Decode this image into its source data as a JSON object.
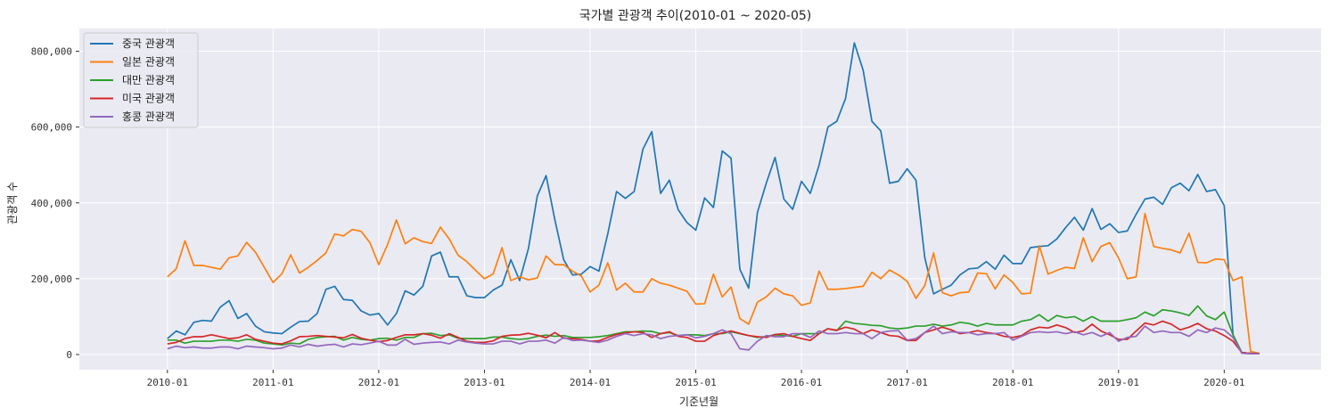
{
  "chart_data": {
    "type": "line",
    "title": "국가별 관광객 추이(2010-01 ~ 2020-05)",
    "xlabel": "기준년월",
    "ylabel": "관광객 수",
    "xlim": [
      "2009-03",
      "2020-12"
    ],
    "ylim": [
      -40000,
      860000
    ],
    "x_ticks": [
      "2010-01",
      "2011-01",
      "2012-01",
      "2013-01",
      "2014-01",
      "2015-01",
      "2016-01",
      "2017-01",
      "2018-01",
      "2019-01",
      "2020-01"
    ],
    "y_ticks": [
      0,
      200000,
      400000,
      600000,
      800000
    ],
    "y_tick_labels": [
      "0",
      "200,000",
      "400,000",
      "600,000",
      "800,000"
    ],
    "grid": true,
    "legend_position": "top-left",
    "start_month": "2010-01",
    "colors": [
      "#1f77b4",
      "#ff7f0e",
      "#2ca02c",
      "#d62728",
      "#9467bd"
    ],
    "series": [
      {
        "name": "중국 관광객",
        "values": [
          42000,
          62000,
          52000,
          85000,
          90000,
          88000,
          125000,
          142000,
          95000,
          108000,
          75000,
          60000,
          57000,
          55000,
          72000,
          87000,
          88000,
          108000,
          172000,
          180000,
          145000,
          143000,
          115000,
          104000,
          108000,
          78000,
          108000,
          168000,
          157000,
          180000,
          260000,
          270000,
          205000,
          205000,
          155000,
          150000,
          150000,
          170000,
          183000,
          250000,
          195000,
          280000,
          418000,
          472000,
          355000,
          250000,
          210000,
          212000,
          232000,
          220000,
          318000,
          430000,
          412000,
          430000,
          542000,
          588000,
          425000,
          460000,
          382000,
          348000,
          328000,
          413000,
          388000,
          537000,
          518000,
          225000,
          175000,
          375000,
          452000,
          520000,
          410000,
          383000,
          457000,
          425000,
          500000,
          600000,
          615000,
          675000,
          822000,
          750000,
          615000,
          590000,
          452000,
          457000,
          490000,
          460000,
          255000,
          160000,
          172000,
          183000,
          210000,
          226000,
          228000,
          245000,
          225000,
          262000,
          240000,
          240000,
          282000,
          285000,
          287000,
          305000,
          335000,
          362000,
          328000,
          385000,
          330000,
          345000,
          322000,
          326000,
          370000,
          410000,
          415000,
          396000,
          440000,
          452000,
          432000,
          475000,
          430000,
          435000,
          393000,
          52000,
          5000,
          3000,
          3000
        ]
      },
      {
        "name": "일본 관광객",
        "values": [
          205000,
          226000,
          300000,
          235000,
          235000,
          230000,
          225000,
          255000,
          260000,
          296000,
          270000,
          230000,
          190000,
          213000,
          263000,
          215000,
          230000,
          248000,
          268000,
          318000,
          313000,
          330000,
          325000,
          295000,
          237000,
          290000,
          355000,
          292000,
          308000,
          298000,
          293000,
          336000,
          305000,
          262000,
          245000,
          222000,
          200000,
          213000,
          282000,
          195000,
          205000,
          197000,
          202000,
          260000,
          237000,
          237000,
          220000,
          207000,
          165000,
          183000,
          242000,
          170000,
          188000,
          165000,
          165000,
          200000,
          188000,
          183000,
          175000,
          167000,
          133000,
          134000,
          212000,
          152000,
          178000,
          95000,
          80000,
          138000,
          152000,
          175000,
          160000,
          155000,
          130000,
          136000,
          220000,
          172000,
          172000,
          174000,
          177000,
          180000,
          217000,
          200000,
          223000,
          210000,
          193000,
          148000,
          182000,
          268000,
          163000,
          155000,
          163000,
          165000,
          215000,
          213000,
          173000,
          210000,
          190000,
          160000,
          162000,
          287000,
          212000,
          222000,
          230000,
          227000,
          308000,
          245000,
          285000,
          295000,
          255000,
          200000,
          205000,
          372000,
          285000,
          280000,
          276000,
          268000,
          320000,
          243000,
          242000,
          252000,
          250000,
          195000,
          205000,
          8000,
          3000
        ]
      },
      {
        "name": "대만 관광객",
        "values": [
          38000,
          38000,
          30000,
          35000,
          35000,
          35000,
          38000,
          38000,
          35000,
          40000,
          38000,
          30000,
          28000,
          25000,
          30000,
          28000,
          40000,
          45000,
          47000,
          48000,
          38000,
          45000,
          40000,
          38000,
          42000,
          43000,
          38000,
          45000,
          45000,
          55000,
          56000,
          50000,
          52000,
          43000,
          42000,
          42000,
          42000,
          46000,
          46000,
          42000,
          40000,
          42000,
          48000,
          51000,
          48000,
          50000,
          45000,
          45000,
          45000,
          47000,
          50000,
          55000,
          60000,
          60000,
          62000,
          61000,
          55000,
          58000,
          50000,
          52000,
          52000,
          50000,
          55000,
          55000,
          60000,
          55000,
          50000,
          45000,
          48000,
          52000,
          50000,
          48000,
          55000,
          55000,
          55000,
          68000,
          63000,
          88000,
          82000,
          80000,
          77000,
          76000,
          70000,
          68000,
          70000,
          75000,
          75000,
          80000,
          75000,
          78000,
          85000,
          82000,
          75000,
          82000,
          78000,
          78000,
          78000,
          88000,
          92000,
          105000,
          88000,
          103000,
          97000,
          100000,
          88000,
          100000,
          88000,
          88000,
          88000,
          92000,
          97000,
          112000,
          102000,
          118000,
          115000,
          110000,
          103000,
          128000,
          102000,
          92000,
          112000,
          52000,
          5000,
          3000,
          3000
        ]
      },
      {
        "name": "미국 관광객",
        "values": [
          28000,
          32000,
          42000,
          47000,
          47000,
          52000,
          47000,
          42000,
          44000,
          52000,
          40000,
          35000,
          30000,
          28000,
          36000,
          47000,
          48000,
          50000,
          48000,
          46000,
          44000,
          53000,
          43000,
          38000,
          34000,
          37000,
          45000,
          52000,
          52000,
          55000,
          51000,
          43000,
          55000,
          45000,
          35000,
          32000,
          32000,
          36000,
          48000,
          51000,
          52000,
          56000,
          51000,
          44000,
          58000,
          43000,
          42000,
          40000,
          35000,
          36000,
          45000,
          53000,
          57000,
          60000,
          58000,
          45000,
          55000,
          60000,
          48000,
          45000,
          35000,
          35000,
          50000,
          57000,
          62000,
          56000,
          50000,
          47000,
          45000,
          53000,
          55000,
          48000,
          42000,
          37000,
          55000,
          68000,
          64000,
          72000,
          67000,
          55000,
          65000,
          58000,
          50000,
          48000,
          37000,
          37000,
          58000,
          65000,
          72000,
          65000,
          55000,
          58000,
          63000,
          58000,
          55000,
          48000,
          45000,
          50000,
          65000,
          72000,
          70000,
          78000,
          71000,
          58000,
          62000,
          80000,
          62000,
          52000,
          40000,
          40000,
          62000,
          83000,
          78000,
          88000,
          80000,
          65000,
          72000,
          82000,
          68000,
          62000,
          50000,
          35000,
          5000,
          3000,
          3000
        ]
      },
      {
        "name": "홍콩 관광객",
        "values": [
          15000,
          22000,
          18000,
          20000,
          17000,
          17000,
          20000,
          20000,
          15000,
          22000,
          20000,
          18000,
          15000,
          17000,
          25000,
          20000,
          27000,
          22000,
          25000,
          27000,
          20000,
          28000,
          26000,
          30000,
          35000,
          25000,
          25000,
          40000,
          27000,
          30000,
          32000,
          33000,
          28000,
          38000,
          33000,
          30000,
          28000,
          28000,
          35000,
          35000,
          28000,
          35000,
          35000,
          38000,
          30000,
          45000,
          37000,
          38000,
          35000,
          32000,
          38000,
          48000,
          55000,
          50000,
          55000,
          52000,
          42000,
          48000,
          50000,
          52000,
          44000,
          48000,
          55000,
          65000,
          55000,
          15000,
          12000,
          35000,
          50000,
          47000,
          47000,
          55000,
          55000,
          45000,
          62000,
          55000,
          55000,
          58000,
          55000,
          55000,
          42000,
          58000,
          62000,
          63000,
          38000,
          42000,
          58000,
          75000,
          55000,
          60000,
          58000,
          58000,
          52000,
          55000,
          55000,
          58000,
          38000,
          48000,
          58000,
          60000,
          58000,
          60000,
          55000,
          60000,
          52000,
          58000,
          48000,
          58000,
          35000,
          45000,
          48000,
          75000,
          58000,
          62000,
          58000,
          58000,
          48000,
          65000,
          58000,
          70000,
          65000,
          45000,
          3000,
          2000,
          2000
        ]
      }
    ]
  }
}
